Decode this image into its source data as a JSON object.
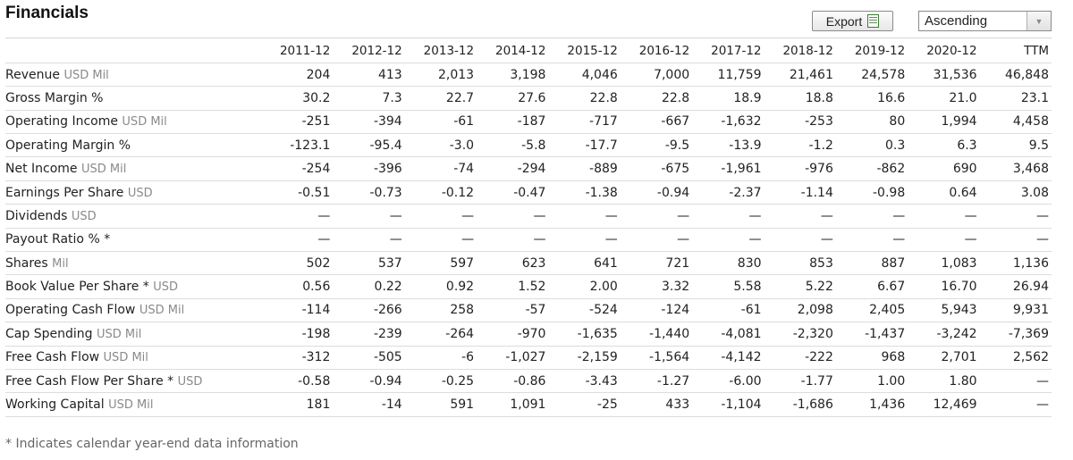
{
  "title": "Financials",
  "toolbar": {
    "export_label": "Export",
    "sort_selected": "Ascending",
    "sort_options": [
      "Ascending"
    ]
  },
  "columns": [
    "2011-12",
    "2012-12",
    "2013-12",
    "2014-12",
    "2015-12",
    "2016-12",
    "2017-12",
    "2018-12",
    "2019-12",
    "2020-12",
    "TTM"
  ],
  "rows": [
    {
      "label": "Revenue",
      "unit": "USD Mil",
      "values": [
        "204",
        "413",
        "2,013",
        "3,198",
        "4,046",
        "7,000",
        "11,759",
        "21,461",
        "24,578",
        "31,536",
        "46,848"
      ]
    },
    {
      "label": "Gross Margin %",
      "unit": "",
      "values": [
        "30.2",
        "7.3",
        "22.7",
        "27.6",
        "22.8",
        "22.8",
        "18.9",
        "18.8",
        "16.6",
        "21.0",
        "23.1"
      ]
    },
    {
      "label": "Operating Income",
      "unit": "USD Mil",
      "values": [
        "-251",
        "-394",
        "-61",
        "-187",
        "-717",
        "-667",
        "-1,632",
        "-253",
        "80",
        "1,994",
        "4,458"
      ]
    },
    {
      "label": "Operating Margin %",
      "unit": "",
      "values": [
        "-123.1",
        "-95.4",
        "-3.0",
        "-5.8",
        "-17.7",
        "-9.5",
        "-13.9",
        "-1.2",
        "0.3",
        "6.3",
        "9.5"
      ]
    },
    {
      "label": "Net Income",
      "unit": "USD Mil",
      "values": [
        "-254",
        "-396",
        "-74",
        "-294",
        "-889",
        "-675",
        "-1,961",
        "-976",
        "-862",
        "690",
        "3,468"
      ]
    },
    {
      "label": "Earnings Per Share",
      "unit": "USD",
      "values": [
        "-0.51",
        "-0.73",
        "-0.12",
        "-0.47",
        "-1.38",
        "-0.94",
        "-2.37",
        "-1.14",
        "-0.98",
        "0.64",
        "3.08"
      ]
    },
    {
      "label": "Dividends",
      "unit": "USD",
      "values": [
        "—",
        "—",
        "—",
        "—",
        "—",
        "—",
        "—",
        "—",
        "—",
        "—",
        "—"
      ]
    },
    {
      "label": "Payout Ratio % *",
      "unit": "",
      "values": [
        "—",
        "—",
        "—",
        "—",
        "—",
        "—",
        "—",
        "—",
        "—",
        "—",
        "—"
      ]
    },
    {
      "label": "Shares",
      "unit": "Mil",
      "values": [
        "502",
        "537",
        "597",
        "623",
        "641",
        "721",
        "830",
        "853",
        "887",
        "1,083",
        "1,136"
      ]
    },
    {
      "label": "Book Value Per Share *",
      "unit": "USD",
      "values": [
        "0.56",
        "0.22",
        "0.92",
        "1.52",
        "2.00",
        "3.32",
        "5.58",
        "5.22",
        "6.67",
        "16.70",
        "26.94"
      ]
    },
    {
      "label": "Operating Cash Flow",
      "unit": "USD Mil",
      "values": [
        "-114",
        "-266",
        "258",
        "-57",
        "-524",
        "-124",
        "-61",
        "2,098",
        "2,405",
        "5,943",
        "9,931"
      ]
    },
    {
      "label": "Cap Spending",
      "unit": "USD Mil",
      "values": [
        "-198",
        "-239",
        "-264",
        "-970",
        "-1,635",
        "-1,440",
        "-4,081",
        "-2,320",
        "-1,437",
        "-3,242",
        "-7,369"
      ]
    },
    {
      "label": "Free Cash Flow",
      "unit": "USD Mil",
      "values": [
        "-312",
        "-505",
        "-6",
        "-1,027",
        "-2,159",
        "-1,564",
        "-4,142",
        "-222",
        "968",
        "2,701",
        "2,562"
      ]
    },
    {
      "label": "Free Cash Flow Per Share *",
      "unit": "USD",
      "values": [
        "-0.58",
        "-0.94",
        "-0.25",
        "-0.86",
        "-3.43",
        "-1.27",
        "-6.00",
        "-1.77",
        "1.00",
        "1.80",
        "—"
      ]
    },
    {
      "label": "Working Capital",
      "unit": "USD Mil",
      "values": [
        "181",
        "-14",
        "591",
        "1,091",
        "-25",
        "433",
        "-1,104",
        "-1,686",
        "1,436",
        "12,469",
        "—"
      ]
    }
  ],
  "footnote": "* Indicates calendar year-end data information",
  "colors": {
    "border": "#dcdcdc",
    "unit_text": "#8a8a8a",
    "footnote_text": "#666666"
  }
}
